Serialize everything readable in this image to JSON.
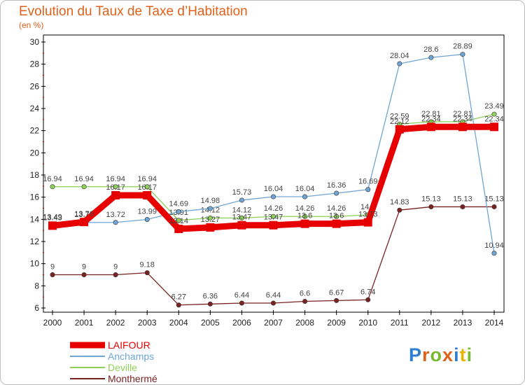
{
  "header": {
    "title": "Evolution du Taux de Taxe d’Habitation",
    "subtitle": "(en %)"
  },
  "logo": {
    "letters": [
      "P",
      "r",
      "o",
      "x",
      "i",
      "t",
      "i"
    ],
    "colors": [
      "#2e7dd1",
      "#e0621a",
      "#78b832",
      "#e0621a",
      "#2e7dd1",
      "#e8b400",
      "#78b832"
    ]
  },
  "chart_data": {
    "type": "line",
    "categories": [
      "2000",
      "2001",
      "2002",
      "2003",
      "2004",
      "2005",
      "2006",
      "2007",
      "2008",
      "2009",
      "2010",
      "2011",
      "2012",
      "2013",
      "2014"
    ],
    "ylim": [
      6,
      30
    ],
    "yticks": [
      6,
      8,
      10,
      12,
      14,
      16,
      18,
      20,
      22,
      24,
      26,
      28,
      30
    ],
    "grid": false,
    "legend_position": "bottom-left",
    "series": [
      {
        "name": "LAIFOUR",
        "color": "#e60000",
        "values": [
          13.43,
          13.76,
          16.17,
          16.17,
          13.14,
          13.27,
          13.47,
          13.47,
          13.6,
          13.6,
          13.73,
          22.12,
          22.34,
          22.34,
          22.34
        ],
        "labels": [
          "13.43",
          "13.76",
          "16.17",
          "16.17",
          "13.14",
          "13.27",
          "13.47",
          "13.47",
          "13.6",
          "13.6",
          "13.73",
          "22.12",
          "22.34",
          "22.34",
          "22.34"
        ]
      },
      {
        "name": "Anchamps",
        "color": "#6fa6d6",
        "values": [
          13.49,
          13.72,
          13.72,
          13.99,
          14.69,
          14.98,
          15.73,
          16.04,
          16.04,
          16.36,
          16.69,
          28.04,
          28.6,
          28.89,
          10.94
        ],
        "labels": [
          "13.49",
          "13.72",
          "13.72",
          "13.99",
          "14.69",
          "14.98",
          "15.73",
          "16.04",
          "16.04",
          "16.36",
          "16.69",
          "28.04",
          "28.6",
          "28.89",
          "10.94"
        ]
      },
      {
        "name": "Deville",
        "color": "#8fd05a",
        "values": [
          16.94,
          16.94,
          16.94,
          16.94,
          13.91,
          14.12,
          14.12,
          14.26,
          14.26,
          14.26,
          14.4,
          22.59,
          22.81,
          22.81,
          23.49
        ],
        "labels": [
          "16.94",
          "16.94",
          "16.94",
          "16.94",
          "13.91",
          "14.12",
          "14.12",
          "14.26",
          "14.26",
          "14.26",
          "14.4",
          "22.59",
          "22.81",
          "22.81",
          "23.49"
        ]
      },
      {
        "name": "Monthermé",
        "color": "#7a2222",
        "values": [
          9,
          9,
          9,
          9.18,
          6.27,
          6.36,
          6.44,
          6.44,
          6.6,
          6.67,
          6.74,
          14.83,
          15.13,
          15.13,
          15.13
        ],
        "labels": [
          "9",
          "9",
          "9",
          "9.18",
          "6.27",
          "6.36",
          "6.44",
          "6.44",
          "6.6",
          "6.67",
          "6.74",
          "14.83",
          "15.13",
          "15.13",
          "15.13"
        ]
      }
    ]
  }
}
